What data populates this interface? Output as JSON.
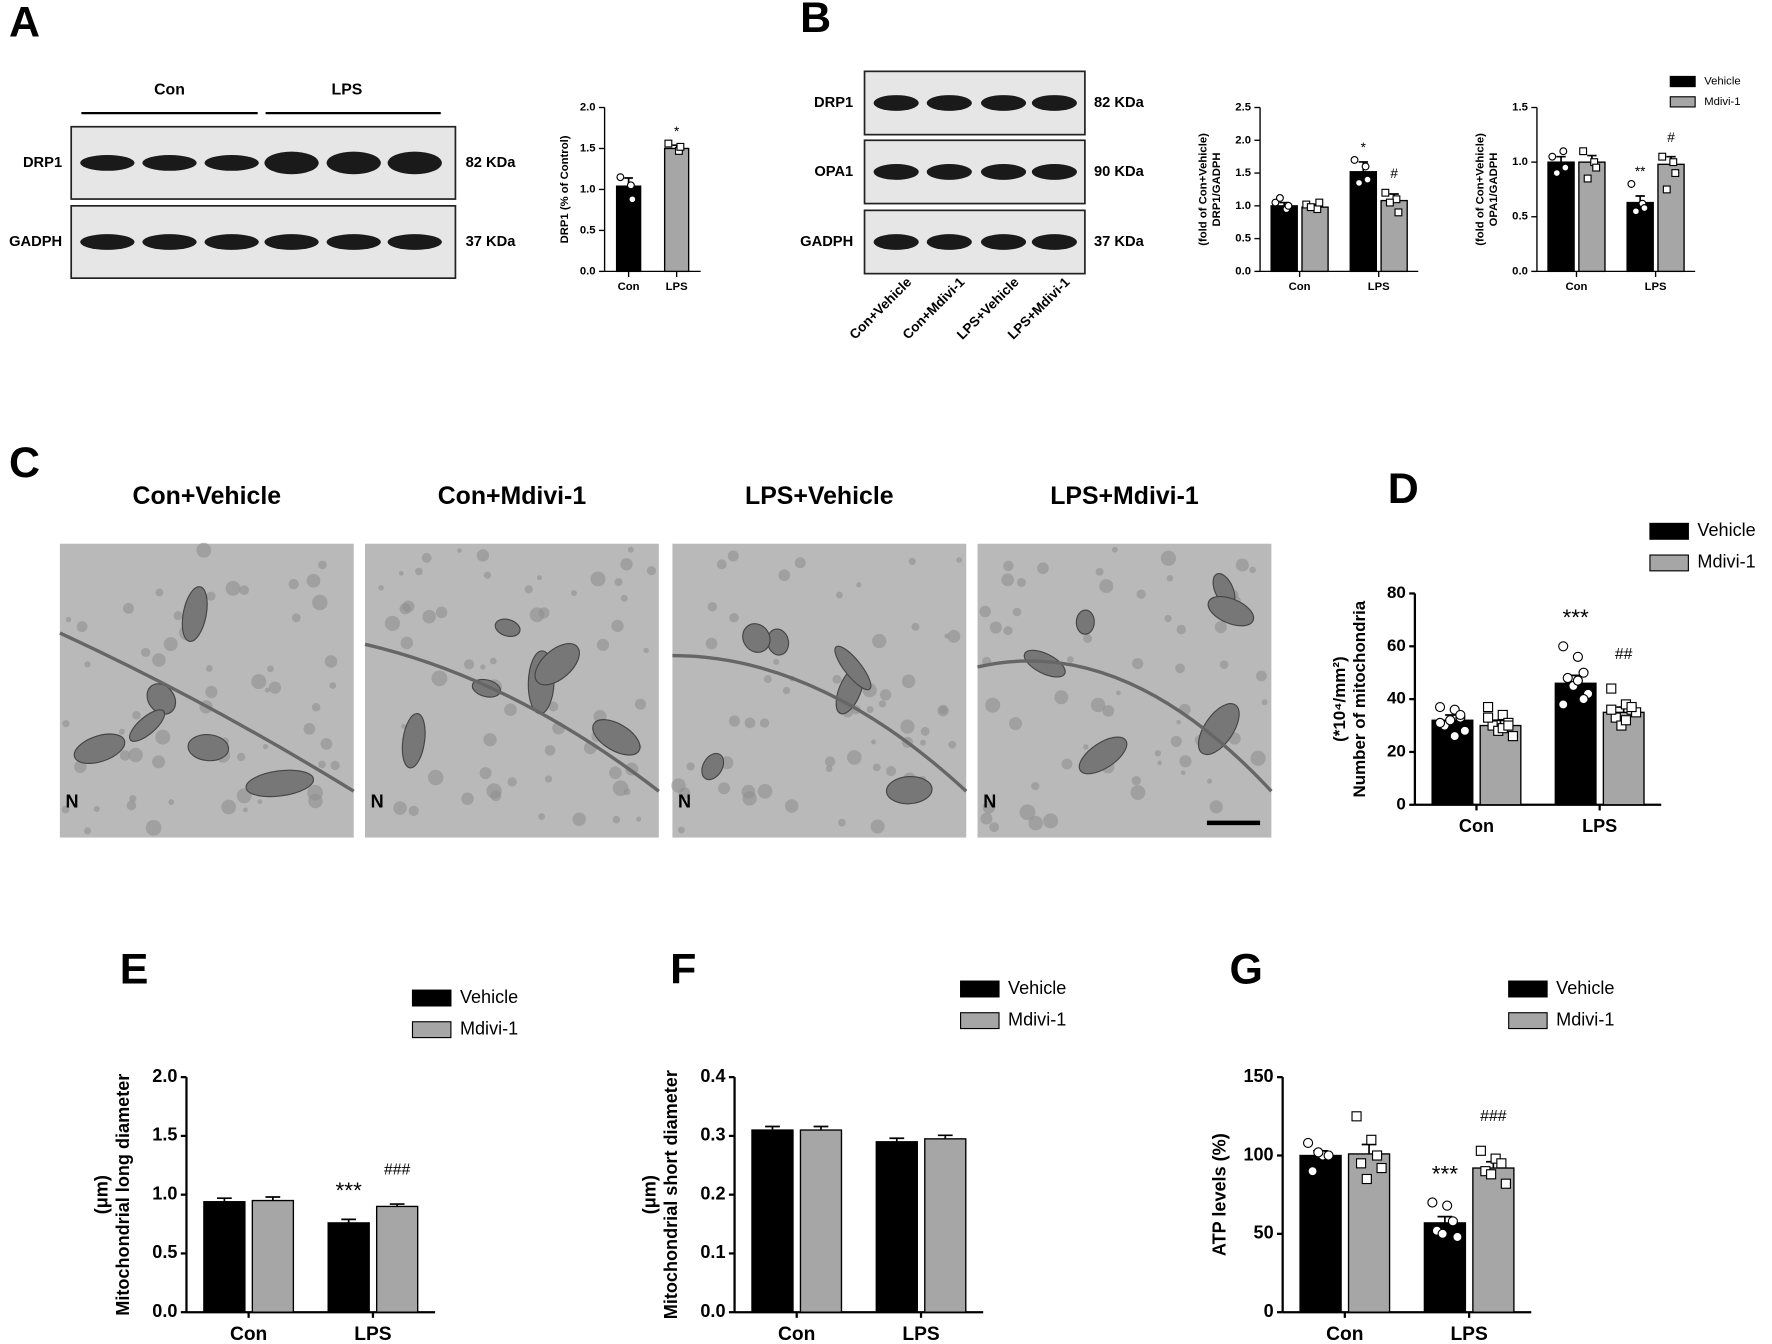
{
  "panel_labels": {
    "C": "C"
  },
  "blots": {
    "A": {
      "panel": "A",
      "groups": [
        "Con",
        "LPS"
      ],
      "rows": [
        {
          "protein": "DRP1",
          "size": "82 KDa"
        },
        {
          "protein": "GADPH",
          "size": "37 KDa"
        }
      ]
    },
    "B": {
      "rows": [
        {
          "protein": "DRP1",
          "size": "82 KDa"
        },
        {
          "protein": "OPA1",
          "size": "90 KDa"
        },
        {
          "protein": "GADPH",
          "size": "37 KDa"
        }
      ],
      "lanes": [
        "Con+Vehicle",
        "Con+Mdivi-1",
        "LPS+Vehicle",
        "LPS+Mdivi-1"
      ]
    }
  },
  "em": {
    "titles": [
      "Con+Vehicle",
      "Con+Mdivi-1",
      "LPS+Vehicle",
      "LPS+Mdivi-1"
    ],
    "marker": "N"
  },
  "chart_data": [
    {
      "type": "bar",
      "panel": "A",
      "ylabel": [
        "DRP1 (% of Control)"
      ],
      "categories": [
        "Con",
        "LPS"
      ],
      "values": [
        1.04,
        1.5
      ],
      "errors": [
        0.1,
        0.04
      ],
      "colors": [
        "#000000",
        "#a6a6a6"
      ],
      "points": [
        [
          1.15,
          1.05,
          0.88
        ],
        [
          1.56,
          1.47,
          1.52
        ]
      ],
      "ylim": [
        0,
        2.0
      ],
      "yticks": [
        {
          "value": 0,
          "label": "0.0"
        },
        {
          "value": 0.5,
          "label": "0.5"
        },
        {
          "value": 1.0,
          "label": "1.0"
        },
        {
          "value": 1.5,
          "label": "1.5"
        },
        {
          "value": 2.0,
          "label": "2.0"
        }
      ],
      "annotations": [
        {
          "text": "*",
          "category": 1
        }
      ]
    },
    {
      "type": "grouped_bar",
      "panel": "B",
      "ylabel": [
        "DRP1/GADPH",
        "(fold of Con+Vehicle)"
      ],
      "categories": [
        "Con",
        "LPS"
      ],
      "series": [
        {
          "name": "Vehicle",
          "color": "#000000",
          "values": [
            1.0,
            1.52
          ],
          "errors": [
            0.05,
            0.15
          ],
          "points": [
            [
              1.05,
              0.95,
              1.0,
              1.12
            ],
            [
              1.7,
              1.6,
              1.4,
              1.35
            ]
          ]
        },
        {
          "name": "Mdivi-1",
          "color": "#a6a6a6",
          "values": [
            0.98,
            1.08
          ],
          "errors": [
            0.04,
            0.1
          ],
          "points": [
            [
              1.02,
              0.95,
              1.05,
              0.98
            ],
            [
              1.2,
              1.1,
              0.9,
              1.05
            ]
          ]
        }
      ],
      "ylim": [
        0,
        2.5
      ],
      "yticks": [
        {
          "value": 0,
          "label": "0.0"
        },
        {
          "value": 0.5,
          "label": "0.5"
        },
        {
          "value": 1.0,
          "label": "1.0"
        },
        {
          "value": 1.5,
          "label": "1.5"
        },
        {
          "value": 2.0,
          "label": "2.0"
        },
        {
          "value": 2.5,
          "label": "2.5"
        }
      ],
      "annotations": [
        {
          "text": "*",
          "category": 1,
          "series": 0
        },
        {
          "text": "#",
          "category": 1,
          "series": 1
        }
      ],
      "legend": false
    },
    {
      "type": "grouped_bar",
      "ylabel": [
        "OPA1/GADPH",
        "(fold of Con+Vehicle)"
      ],
      "categories": [
        "Con",
        "LPS"
      ],
      "series": [
        {
          "name": "Vehicle",
          "color": "#000000",
          "values": [
            1.0,
            0.63
          ],
          "errors": [
            0.05,
            0.06
          ],
          "points": [
            [
              1.05,
              1.1,
              0.95,
              0.9
            ],
            [
              0.8,
              0.62,
              0.58,
              0.55
            ]
          ]
        },
        {
          "name": "Mdivi-1",
          "color": "#a6a6a6",
          "values": [
            1.0,
            0.98
          ],
          "errors": [
            0.06,
            0.07
          ],
          "points": [
            [
              1.1,
              1.0,
              0.95,
              0.85
            ],
            [
              1.05,
              1.0,
              0.9,
              0.75
            ]
          ]
        }
      ],
      "ylim": [
        0,
        1.5
      ],
      "yticks": [
        {
          "value": 0,
          "label": "0.0"
        },
        {
          "value": 0.5,
          "label": "0.5"
        },
        {
          "value": 1.0,
          "label": "1.0"
        },
        {
          "value": 1.5,
          "label": "1.5"
        }
      ],
      "annotations": [
        {
          "text": "**",
          "category": 1,
          "series": 0
        },
        {
          "text": "#",
          "category": 1,
          "series": 1
        }
      ],
      "legend": true
    },
    {
      "type": "grouped_bar",
      "panel": "D",
      "ylabel": [
        "Number of mitochondria",
        "(*10⁴/mm²)"
      ],
      "categories": [
        "Con",
        "LPS"
      ],
      "series": [
        {
          "name": "Vehicle",
          "color": "#000000",
          "values": [
            32,
            46
          ],
          "errors": [
            2,
            3
          ],
          "points": [
            [
              37,
              36,
              33,
              30,
              32,
              28,
              31,
              26,
              34
            ],
            [
              60,
              56,
              50,
              48,
              45,
              42,
              38,
              47,
              40
            ]
          ]
        },
        {
          "name": "Mdivi-1",
          "color": "#a6a6a6",
          "values": [
            30,
            35
          ],
          "errors": [
            2,
            2
          ],
          "points": [
            [
              37,
              34,
              31,
              30,
              28,
              26,
              33,
              29,
              30
            ],
            [
              44,
              38,
              36,
              33,
              30,
              35,
              36,
              32,
              37
            ]
          ]
        }
      ],
      "ylim": [
        0,
        80
      ],
      "yticks": [
        0,
        20,
        40,
        60,
        80
      ],
      "annotations": [
        {
          "text": "***",
          "category": 1,
          "series": 0
        },
        {
          "text": "##",
          "category": 1,
          "series": 1
        }
      ],
      "legend": true
    },
    {
      "type": "grouped_bar",
      "panel": "E",
      "ylabel": [
        "Mitochondrial long diameter",
        "(μm)"
      ],
      "categories": [
        "Con",
        "LPS"
      ],
      "series": [
        {
          "name": "Vehicle",
          "color": "#000000",
          "values": [
            0.94,
            0.76
          ],
          "errors": [
            0.03,
            0.03
          ]
        },
        {
          "name": "Mdivi-1",
          "color": "#a6a6a6",
          "values": [
            0.95,
            0.9
          ],
          "errors": [
            0.03,
            0.02
          ]
        }
      ],
      "ylim": [
        0,
        2.0
      ],
      "yticks": [
        {
          "value": 0,
          "label": "0.0"
        },
        {
          "value": 0.5,
          "label": "0.5"
        },
        {
          "value": 1.0,
          "label": "1.0"
        },
        {
          "value": 1.5,
          "label": "1.5"
        },
        {
          "value": 2.0,
          "label": "2.0"
        }
      ],
      "annotations": [
        {
          "text": "***",
          "category": 1,
          "series": 0
        },
        {
          "text": "###",
          "category": 1,
          "series": 1
        }
      ],
      "legend": true
    },
    {
      "type": "grouped_bar",
      "panel": "F",
      "ylabel": [
        "Mitochondrial short diameter",
        "(μm)"
      ],
      "categories": [
        "Con",
        "LPS"
      ],
      "series": [
        {
          "name": "Vehicle",
          "color": "#000000",
          "values": [
            0.31,
            0.29
          ],
          "errors": [
            0.006,
            0.006
          ]
        },
        {
          "name": "Mdivi-1",
          "color": "#a6a6a6",
          "values": [
            0.31,
            0.295
          ],
          "errors": [
            0.006,
            0.006
          ]
        }
      ],
      "ylim": [
        0,
        0.4
      ],
      "yticks": [
        {
          "value": 0,
          "label": "0.0"
        },
        {
          "value": 0.1,
          "label": "0.1"
        },
        {
          "value": 0.2,
          "label": "0.2"
        },
        {
          "value": 0.3,
          "label": "0.3"
        },
        {
          "value": 0.4,
          "label": "0.4"
        }
      ],
      "annotations": [],
      "legend": true
    },
    {
      "type": "grouped_bar",
      "panel": "G",
      "ylabel": [
        "ATP levels (%)"
      ],
      "categories": [
        "Con",
        "LPS"
      ],
      "series": [
        {
          "name": "Vehicle",
          "color": "#000000",
          "values": [
            100,
            57
          ],
          "errors": [
            3,
            4
          ],
          "points": [
            [
              108,
              100,
              100,
              90,
              102
            ],
            [
              70,
              68,
              58,
              52,
              50,
              48
            ]
          ]
        },
        {
          "name": "Mdivi-1",
          "color": "#a6a6a6",
          "values": [
            101,
            92
          ],
          "errors": [
            6,
            4
          ],
          "points": [
            [
              125,
              110,
              100,
              95,
              85,
              92
            ],
            [
              103,
              98,
              95,
              90,
              88,
              82
            ]
          ]
        }
      ],
      "ylim": [
        0,
        150
      ],
      "yticks": [
        0,
        50,
        100,
        150
      ],
      "annotations": [
        {
          "text": "***",
          "category": 1,
          "series": 0
        },
        {
          "text": "###",
          "category": 1,
          "series": 1
        }
      ],
      "legend": true
    }
  ]
}
